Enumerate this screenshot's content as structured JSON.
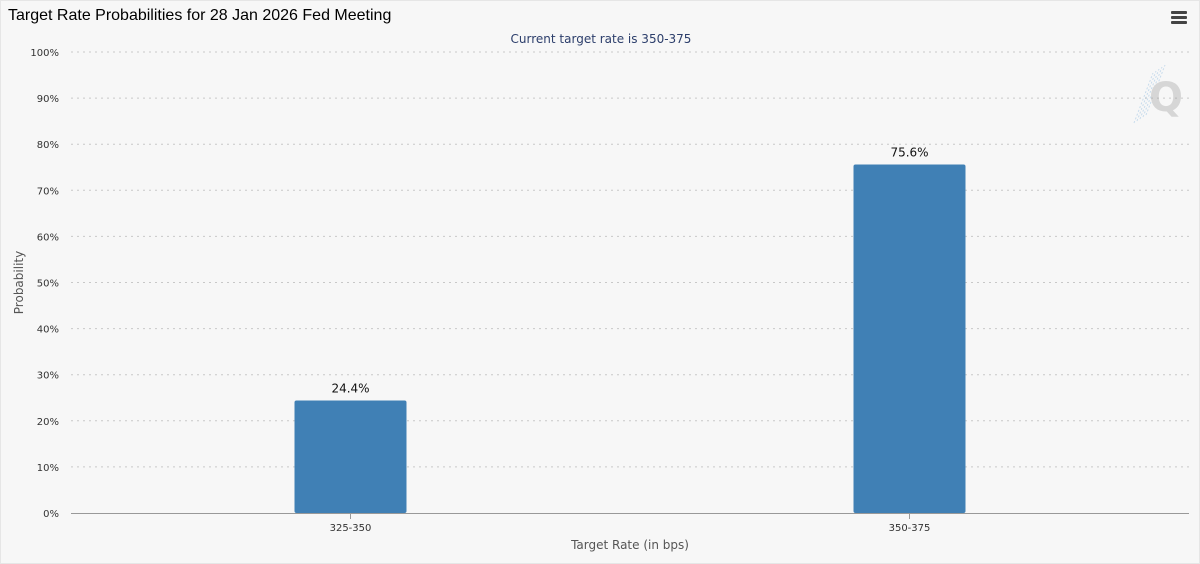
{
  "header": {
    "title": "Target Rate Probabilities for 28 Jan 2026 Fed Meeting",
    "menu_icon": "hamburger-menu-icon"
  },
  "watermark": {
    "letter": "Q",
    "icon": "quikstrike-logo-icon"
  },
  "colors": {
    "bar": "#4080b5",
    "grid": "#c8c8c8",
    "axis": "#999999",
    "text": "#333333",
    "subtitle": "#2c3e6b"
  },
  "chart_data": {
    "type": "bar",
    "title": "Target Rate Probabilities for 28 Jan 2026 Fed Meeting",
    "subtitle": "Current target rate is 350-375",
    "xlabel": "Target Rate (in bps)",
    "ylabel": "Probability",
    "categories": [
      "325-350",
      "350-375"
    ],
    "values": [
      24.4,
      75.6
    ],
    "data_labels": [
      "24.4%",
      "75.6%"
    ],
    "ylim": [
      0,
      100
    ],
    "yticks": [
      0,
      10,
      20,
      30,
      40,
      50,
      60,
      70,
      80,
      90,
      100
    ],
    "ytick_labels": [
      "0%",
      "10%",
      "20%",
      "30%",
      "40%",
      "50%",
      "60%",
      "70%",
      "80%",
      "90%",
      "100%"
    ],
    "grid": true,
    "legend": "none"
  }
}
